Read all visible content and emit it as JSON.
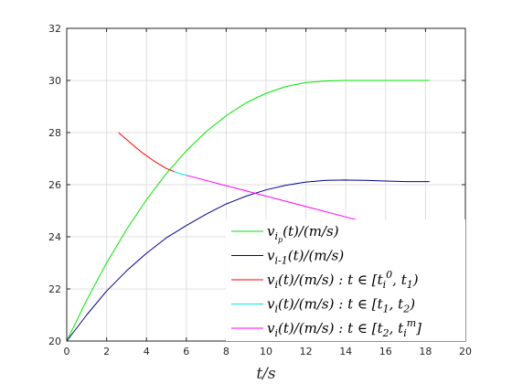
{
  "chart_data": {
    "type": "line",
    "title": "",
    "xlabel": "t/s",
    "ylabel": "",
    "xlim": [
      0,
      20
    ],
    "ylim": [
      20,
      32
    ],
    "xticks": [
      "0",
      "2",
      "4",
      "6",
      "8",
      "10",
      "12",
      "14",
      "16",
      "18",
      "20"
    ],
    "yticks": [
      "20",
      "22",
      "24",
      "26",
      "28",
      "30",
      "32"
    ],
    "grid": true,
    "legend_position": "bottom-right",
    "series": [
      {
        "name": "v_{i_p}(t)/(m/s)",
        "color": "#00e600",
        "x": [
          0,
          1,
          2,
          3,
          4,
          5,
          6,
          7,
          8,
          9,
          10,
          11,
          12,
          13,
          14,
          15,
          16,
          17,
          18.2
        ],
        "y": [
          20.0,
          21.57,
          23.0,
          24.28,
          25.42,
          26.43,
          27.3,
          28.04,
          28.65,
          29.14,
          29.51,
          29.77,
          29.92,
          29.98,
          30.0,
          30.0,
          30.0,
          30.0,
          30.0
        ]
      },
      {
        "name": "v_{i-1}(t)/(m/s)",
        "color": "#00008b",
        "x": [
          0,
          1,
          2,
          3,
          4,
          5,
          6,
          7,
          8,
          9,
          10,
          11,
          12,
          13,
          14,
          15,
          16,
          17,
          18.2
        ],
        "y": [
          20.0,
          21.0,
          21.92,
          22.69,
          23.37,
          23.96,
          24.43,
          24.87,
          25.26,
          25.56,
          25.8,
          25.98,
          26.1,
          26.17,
          26.18,
          26.17,
          26.14,
          26.12,
          26.12
        ]
      },
      {
        "name": "v_i(t)/(m/s) : t ∈ [t_i^0, t_1)",
        "color": "#ff0000",
        "x": [
          2.6,
          3.2,
          3.8,
          4.4,
          5.0,
          5.4
        ],
        "y": [
          28.0,
          27.6,
          27.22,
          26.9,
          26.62,
          26.5
        ]
      },
      {
        "name": "v_i(t)/(m/s) : t ∈ [t_1, t_2)",
        "color": "#00e5e5",
        "x": [
          5.4,
          5.7,
          6.0
        ],
        "y": [
          26.5,
          26.42,
          26.36
        ]
      },
      {
        "name": "v_i(t)/(m/s) : t ∈ [t_2, t_i^m]",
        "color": "#ff00ff",
        "x": [
          6.0,
          8.0,
          10.0,
          12.0,
          14.0,
          16.0,
          18.1
        ],
        "y": [
          26.36,
          25.96,
          25.56,
          25.16,
          24.76,
          24.36,
          23.94
        ]
      }
    ]
  }
}
